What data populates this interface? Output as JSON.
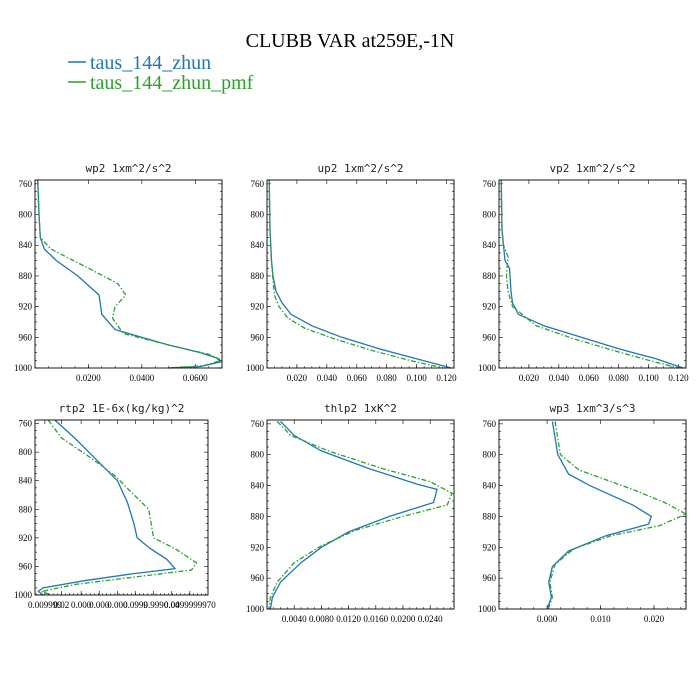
{
  "title": "CLUBB VAR at259E,-1N",
  "legend": [
    {
      "label": "taus_144_zhun",
      "color": "#1f77b4",
      "dash": "solid"
    },
    {
      "label": "taus_144_zhun_pmf",
      "color": "#2ca02c",
      "dash": "dashdot"
    }
  ],
  "chart_data": [
    {
      "type": "line",
      "title": "wp2  1xm^2/s^2",
      "xlim": [
        0,
        0.07
      ],
      "ylim": [
        1000,
        755
      ],
      "y_ticks": [
        760,
        800,
        840,
        880,
        920,
        960,
        1000
      ],
      "x_tick_labels": [
        {
          "v": 0.02,
          "t": "0.0200"
        },
        {
          "v": 0.04,
          "t": "0.0400"
        },
        {
          "v": 0.06,
          "t": "0.0600"
        }
      ],
      "series": [
        {
          "name": "taus_144_zhun",
          "color": "#1f77b4",
          "points": [
            [
              0.001,
              755
            ],
            [
              0.0015,
              800
            ],
            [
              0.002,
              830
            ],
            [
              0.0035,
              845
            ],
            [
              0.008,
              860
            ],
            [
              0.016,
              880
            ],
            [
              0.024,
              905
            ],
            [
              0.025,
              930
            ],
            [
              0.03,
              950
            ],
            [
              0.05,
              970
            ],
            [
              0.062,
              980
            ],
            [
              0.068,
              987
            ],
            [
              0.0695,
              992
            ],
            [
              0.062,
              998
            ],
            [
              0.05,
              1000
            ]
          ]
        },
        {
          "name": "taus_144_zhun_pmf",
          "color": "#2ca02c",
          "points": [
            [
              0.001,
              755
            ],
            [
              0.0015,
              800
            ],
            [
              0.002,
              830
            ],
            [
              0.006,
              845
            ],
            [
              0.02,
              870
            ],
            [
              0.031,
              890
            ],
            [
              0.034,
              905
            ],
            [
              0.03,
              920
            ],
            [
              0.029,
              935
            ],
            [
              0.033,
              955
            ],
            [
              0.05,
              970
            ],
            [
              0.065,
              982
            ],
            [
              0.07,
              990
            ],
            [
              0.063,
              997
            ],
            [
              0.05,
              1000
            ]
          ]
        }
      ]
    },
    {
      "type": "line",
      "title": "up2  1xm^2/s^2",
      "xlim": [
        0,
        0.125
      ],
      "ylim": [
        1000,
        755
      ],
      "y_ticks": [
        760,
        800,
        840,
        880,
        920,
        960,
        1000
      ],
      "x_tick_labels": [
        {
          "v": 0.02,
          "t": "0.020"
        },
        {
          "v": 0.04,
          "t": "0.040"
        },
        {
          "v": 0.06,
          "t": "0.060"
        },
        {
          "v": 0.08,
          "t": "0.080"
        },
        {
          "v": 0.1,
          "t": "0.100"
        },
        {
          "v": 0.12,
          "t": "0.120"
        }
      ],
      "series": [
        {
          "name": "taus_144_zhun",
          "color": "#1f77b4",
          "points": [
            [
              0.0015,
              755
            ],
            [
              0.002,
              820
            ],
            [
              0.003,
              860
            ],
            [
              0.004,
              880
            ],
            [
              0.006,
              900
            ],
            [
              0.01,
              915
            ],
            [
              0.016,
              930
            ],
            [
              0.03,
              945
            ],
            [
              0.05,
              960
            ],
            [
              0.075,
              975
            ],
            [
              0.1,
              988
            ],
            [
              0.123,
              1000
            ]
          ]
        },
        {
          "name": "taus_144_zhun_pmf",
          "color": "#2ca02c",
          "points": [
            [
              0.0015,
              755
            ],
            [
              0.002,
              820
            ],
            [
              0.003,
              860
            ],
            [
              0.004,
              885
            ],
            [
              0.005,
              905
            ],
            [
              0.008,
              920
            ],
            [
              0.014,
              935
            ],
            [
              0.025,
              948
            ],
            [
              0.045,
              962
            ],
            [
              0.07,
              977
            ],
            [
              0.095,
              990
            ],
            [
              0.118,
              1000
            ]
          ]
        }
      ]
    },
    {
      "type": "line",
      "title": "vp2  1xm^2/s^2",
      "xlim": [
        0,
        0.125
      ],
      "ylim": [
        1000,
        755
      ],
      "y_ticks": [
        760,
        800,
        840,
        880,
        920,
        960,
        1000
      ],
      "x_tick_labels": [
        {
          "v": 0.02,
          "t": "0.020"
        },
        {
          "v": 0.04,
          "t": "0.040"
        },
        {
          "v": 0.06,
          "t": "0.060"
        },
        {
          "v": 0.08,
          "t": "0.080"
        },
        {
          "v": 0.1,
          "t": "0.100"
        },
        {
          "v": 0.12,
          "t": "0.120"
        }
      ],
      "series": [
        {
          "name": "taus_144_zhun",
          "color": "#1f77b4",
          "points": [
            [
              0.0015,
              755
            ],
            [
              0.002,
              820
            ],
            [
              0.004,
              860
            ],
            [
              0.007,
              870
            ],
            [
              0.008,
              900
            ],
            [
              0.009,
              915
            ],
            [
              0.013,
              930
            ],
            [
              0.03,
              945
            ],
            [
              0.055,
              960
            ],
            [
              0.08,
              975
            ],
            [
              0.105,
              988
            ],
            [
              0.123,
              1000
            ]
          ]
        },
        {
          "name": "taus_144_zhun_pmf",
          "color": "#2ca02c",
          "points": [
            [
              0.0015,
              755
            ],
            [
              0.002,
              820
            ],
            [
              0.003,
              840
            ],
            [
              0.006,
              855
            ],
            [
              0.005,
              880
            ],
            [
              0.006,
              900
            ],
            [
              0.009,
              920
            ],
            [
              0.025,
              945
            ],
            [
              0.05,
              962
            ],
            [
              0.078,
              978
            ],
            [
              0.1,
              990
            ],
            [
              0.12,
              1000
            ]
          ]
        }
      ]
    },
    {
      "type": "line",
      "title": "rtp2  1E-6x(kg/kg)^2",
      "xlim": [
        0,
        1.05
      ],
      "ylim": [
        1000,
        755
      ],
      "y_ticks": [
        760,
        800,
        840,
        880,
        920,
        960,
        1000
      ],
      "x_tick_labels": [
        {
          "v": 0.06,
          "t": "0.009999"
        },
        {
          "v": 0.16,
          "t": "0.02"
        },
        {
          "v": 0.28,
          "t": "0.000"
        },
        {
          "v": 0.39,
          "t": "0.000"
        },
        {
          "v": 0.5,
          "t": "0.000"
        },
        {
          "v": 0.61,
          "t": "0.0999"
        },
        {
          "v": 0.72,
          "t": "0.999"
        },
        {
          "v": 0.83,
          "t": "0.04"
        },
        {
          "v": 0.94,
          "t": "0.0099999970"
        }
      ],
      "series": [
        {
          "name": "taus_144_zhun",
          "color": "#1f77b4",
          "points": [
            [
              0.12,
              755
            ],
            [
              0.24,
              780
            ],
            [
              0.37,
              810
            ],
            [
              0.5,
              840
            ],
            [
              0.56,
              870
            ],
            [
              0.6,
              900
            ],
            [
              0.62,
              920
            ],
            [
              0.7,
              935
            ],
            [
              0.8,
              950
            ],
            [
              0.85,
              963
            ],
            [
              0.6,
              970
            ],
            [
              0.3,
              980
            ],
            [
              0.05,
              990
            ],
            [
              0.02,
              995
            ],
            [
              0.05,
              1000
            ]
          ]
        },
        {
          "name": "taus_144_zhun_pmf",
          "color": "#2ca02c",
          "points": [
            [
              0.08,
              755
            ],
            [
              0.16,
              780
            ],
            [
              0.32,
              805
            ],
            [
              0.48,
              832
            ],
            [
              0.58,
              855
            ],
            [
              0.69,
              880
            ],
            [
              0.72,
              920
            ],
            [
              0.85,
              935
            ],
            [
              0.98,
              955
            ],
            [
              0.95,
              965
            ],
            [
              0.6,
              975
            ],
            [
              0.25,
              985
            ],
            [
              0.04,
              995
            ],
            [
              0.1,
              1000
            ]
          ]
        }
      ]
    },
    {
      "type": "line",
      "title": "thlp2  1xK^2",
      "xlim": [
        0,
        0.0275
      ],
      "ylim": [
        1000,
        755
      ],
      "y_ticks": [
        760,
        800,
        840,
        880,
        920,
        960,
        1000
      ],
      "x_tick_labels": [
        {
          "v": 0.004,
          "t": "0.0040"
        },
        {
          "v": 0.008,
          "t": "0.0080"
        },
        {
          "v": 0.012,
          "t": "0.0120"
        },
        {
          "v": 0.016,
          "t": "0.0160"
        },
        {
          "v": 0.02,
          "t": "0.0200"
        },
        {
          "v": 0.024,
          "t": "0.0240"
        }
      ],
      "series": [
        {
          "name": "taus_144_zhun",
          "color": "#1f77b4",
          "points": [
            [
              0.002,
              757
            ],
            [
              0.004,
              775
            ],
            [
              0.008,
              795
            ],
            [
              0.015,
              818
            ],
            [
              0.022,
              838
            ],
            [
              0.025,
              845
            ],
            [
              0.0245,
              862
            ],
            [
              0.018,
              880
            ],
            [
              0.012,
              900
            ],
            [
              0.008,
              920
            ],
            [
              0.005,
              940
            ],
            [
              0.002,
              965
            ],
            [
              0.0008,
              985
            ],
            [
              0.0005,
              1000
            ]
          ]
        },
        {
          "name": "taus_144_zhun_pmf",
          "color": "#2ca02c",
          "points": [
            [
              0.0015,
              757
            ],
            [
              0.0035,
              775
            ],
            [
              0.009,
              795
            ],
            [
              0.017,
              818
            ],
            [
              0.024,
              835
            ],
            [
              0.0272,
              850
            ],
            [
              0.0265,
              865
            ],
            [
              0.02,
              880
            ],
            [
              0.013,
              898
            ],
            [
              0.008,
              918
            ],
            [
              0.004,
              940
            ],
            [
              0.0015,
              965
            ],
            [
              0.0005,
              985
            ],
            [
              0.0003,
              1000
            ]
          ]
        }
      ]
    },
    {
      "type": "line",
      "title": "wp3  1xm^3/s^3",
      "xlim": [
        -0.009,
        0.026
      ],
      "ylim": [
        1000,
        755
      ],
      "y_ticks": [
        760,
        800,
        840,
        880,
        920,
        960,
        1000
      ],
      "x_tick_labels": [
        {
          "v": 0,
          "t": "0.000"
        },
        {
          "v": 0.01,
          "t": "0.010"
        },
        {
          "v": 0.02,
          "t": "0.020"
        }
      ],
      "series": [
        {
          "name": "taus_144_zhun",
          "color": "#1f77b4",
          "points": [
            [
              0.001,
              757
            ],
            [
              0.002,
              800
            ],
            [
              0.004,
              825
            ],
            [
              0.008,
              840
            ],
            [
              0.016,
              865
            ],
            [
              0.0195,
              880
            ],
            [
              0.019,
              890
            ],
            [
              0.011,
              905
            ],
            [
              0.004,
              925
            ],
            [
              0.001,
              945
            ],
            [
              0.0003,
              965
            ],
            [
              0.0008,
              985
            ],
            [
              0,
              1000
            ]
          ]
        },
        {
          "name": "taus_144_zhun_pmf",
          "color": "#2ca02c",
          "points": [
            [
              0.0015,
              757
            ],
            [
              0.0025,
              800
            ],
            [
              0.006,
              820
            ],
            [
              0.016,
              845
            ],
            [
              0.022,
              862
            ],
            [
              0.026,
              877
            ],
            [
              0.021,
              892
            ],
            [
              0.012,
              905
            ],
            [
              0.005,
              922
            ],
            [
              0.0015,
              942
            ],
            [
              0.0005,
              965
            ],
            [
              0.001,
              985
            ],
            [
              0.0002,
              1000
            ]
          ]
        }
      ]
    }
  ]
}
